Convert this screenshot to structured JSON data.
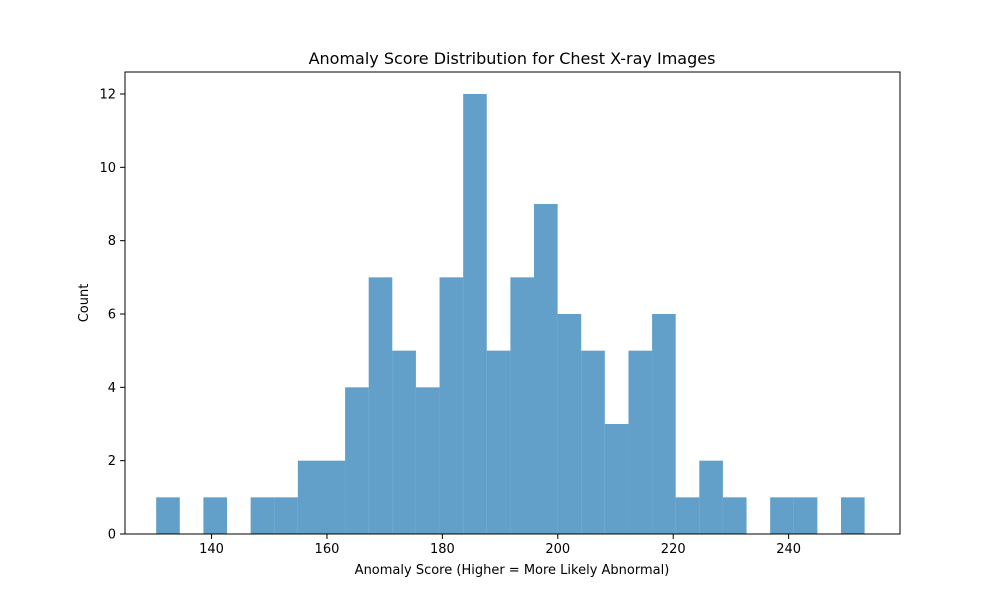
{
  "chart_data": {
    "type": "bar",
    "title": "Anomaly Score Distribution for Chest X-ray Images",
    "xlabel": "Anomaly Score (Higher = More Likely Abnormal)",
    "ylabel": "Count",
    "xlim": [
      125.0,
      259.3
    ],
    "ylim": [
      0,
      12.6
    ],
    "bin_start": 130.4,
    "bin_width": 4.0923,
    "counts": [
      1,
      0,
      1,
      0,
      1,
      1,
      2,
      2,
      4,
      7,
      5,
      4,
      7,
      12,
      5,
      7,
      9,
      6,
      5,
      3,
      5,
      6,
      1,
      2,
      1,
      0,
      1,
      1,
      0,
      1
    ],
    "xticks": [
      "140",
      "160",
      "180",
      "200",
      "220",
      "240"
    ],
    "yticks": [
      "0",
      "2",
      "4",
      "6",
      "8",
      "10",
      "12"
    ],
    "bar_color": "#1f77b4",
    "bar_alpha": 0.7,
    "grid": false,
    "legend": false
  }
}
